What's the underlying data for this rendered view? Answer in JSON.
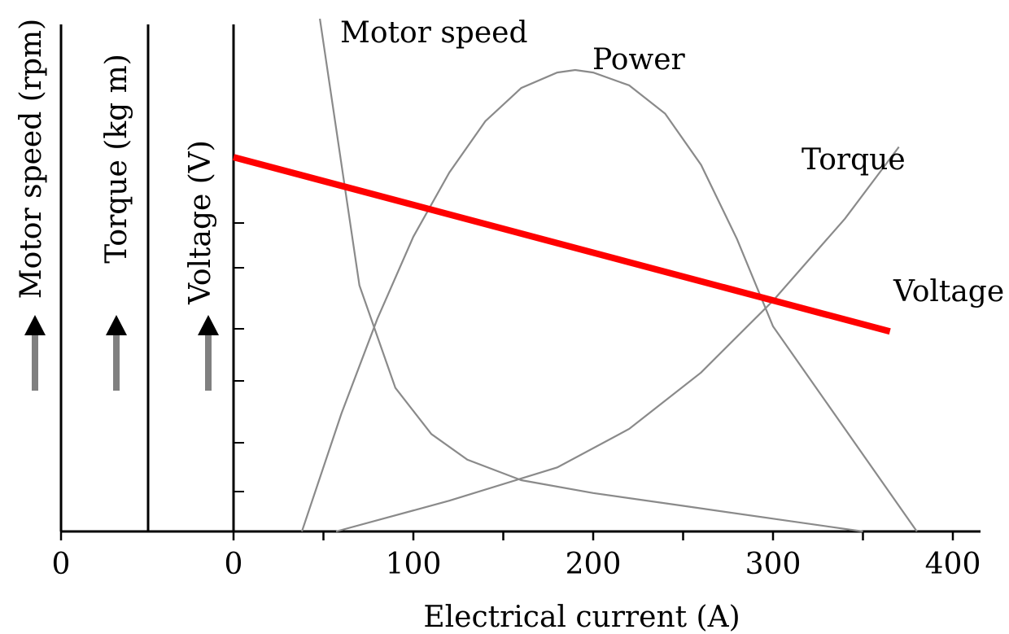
{
  "chart_data": {
    "type": "line",
    "xlabel": "Electrical current (A)",
    "x_ticks": [
      "100",
      "200",
      "300",
      "400"
    ],
    "xlim": [
      0,
      400
    ],
    "y_axes": [
      {
        "label": "Motor speed (rpm)",
        "zero_label": "0"
      },
      {
        "label": "Torque (kg m)",
        "zero_label": ""
      },
      {
        "label": "Voltage (V)",
        "zero_label": "0"
      }
    ],
    "series": [
      {
        "name": "Motor speed",
        "color": "#8a8a8a",
        "x": [
          48,
          70,
          90,
          110,
          130,
          160,
          200,
          250,
          300,
          350
        ],
        "y": [
          100,
          48,
          28,
          19,
          14,
          10,
          7.5,
          5,
          2.5,
          0
        ]
      },
      {
        "name": "Power",
        "color": "#8a8a8a",
        "x": [
          38,
          60,
          80,
          100,
          120,
          140,
          160,
          180,
          190,
          200,
          220,
          240,
          260,
          280,
          300,
          320,
          340,
          360,
          380
        ],
        "y": [
          0,
          23,
          41.5,
          57.5,
          70,
          80,
          86.5,
          89.5,
          90,
          89.5,
          87,
          81.5,
          71.5,
          57,
          40,
          30,
          20,
          10,
          0
        ]
      },
      {
        "name": "Torque",
        "color": "#8a8a8a",
        "x": [
          57,
          120,
          180,
          220,
          260,
          300,
          340,
          370
        ],
        "y": [
          0,
          6,
          12.5,
          20,
          31,
          45,
          61,
          75
        ]
      },
      {
        "name": "Voltage",
        "color": "#ff0000",
        "x": [
          0,
          365
        ],
        "y": [
          73,
          39
        ]
      }
    ],
    "grid": false,
    "legend": "none"
  }
}
